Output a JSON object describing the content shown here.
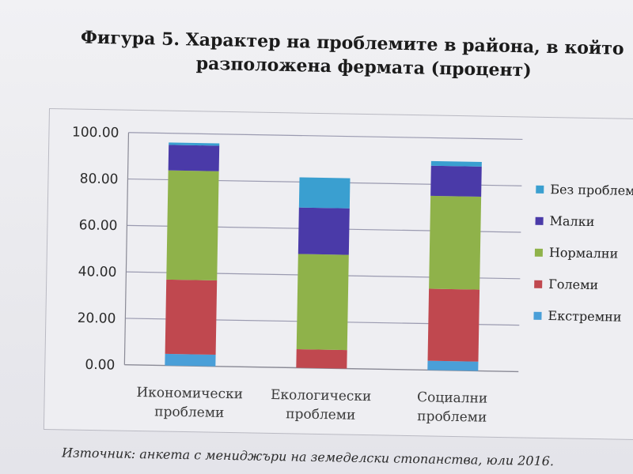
{
  "title": {
    "line1": "Фигура 5. Характер на проблемите в района, в който",
    "line2": "разположена фермата (процент)"
  },
  "source": "Източник: анкета с мениджъри на земеделски стопанства, юли 2016.",
  "chart_data": {
    "type": "bar",
    "stacked": true,
    "categories": [
      [
        "Икономически",
        "проблеми"
      ],
      [
        "Екологически",
        "проблеми"
      ],
      [
        "Социални",
        "проблеми"
      ]
    ],
    "yticks": [
      "0.00",
      "20.00",
      "40.00",
      "60.00",
      "80.00",
      "100.00"
    ],
    "ylim": [
      0,
      100
    ],
    "grid": true,
    "legend_position": "right",
    "series": [
      {
        "name": "Екстремни",
        "color": "#4a9fd8",
        "values": [
          5,
          0,
          4
        ]
      },
      {
        "name": "Големи",
        "color": "#c0484f",
        "values": [
          32,
          8,
          31
        ]
      },
      {
        "name": "Нормални",
        "color": "#8fb24a",
        "values": [
          47,
          41,
          40
        ]
      },
      {
        "name": "Малки",
        "color": "#4a3aa8",
        "values": [
          11,
          20,
          13
        ]
      },
      {
        "name": "Без проблеми",
        "color": "#3a9fd0",
        "values": [
          1,
          13,
          2
        ]
      }
    ]
  }
}
